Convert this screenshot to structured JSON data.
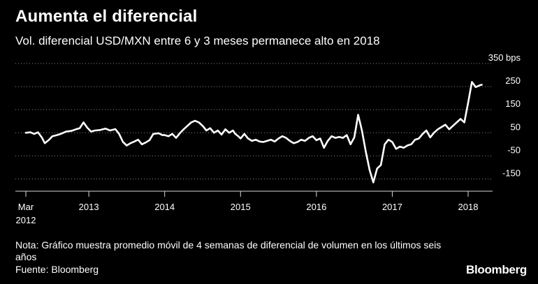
{
  "header": {
    "title": "Aumenta el diferencial",
    "subtitle": "Vol. diferencial USD/MXN entre 6 y 3 meses permanece alto en 2018"
  },
  "footer": {
    "note": "Nota: Gráfico muestra promedio móvil de 4 semanas de diferencial de volumen en los últimos seis años",
    "source": "Fuente: Bloomberg",
    "logo": "Bloomberg"
  },
  "colors": {
    "background": "#000000",
    "line": "#ffffff",
    "grid": "#8a8a8a",
    "axis": "#d9d9d9",
    "text": "#ffffff"
  },
  "chart_data": {
    "type": "line",
    "title": "Aumenta el diferencial",
    "subtitle": "Vol. diferencial USD/MXN entre 6 y 3 meses permanece alto en 2018",
    "unit": "bps",
    "ylim": [
      -200,
      350
    ],
    "xlim": [
      2012.17,
      2018.33
    ],
    "grid": true,
    "legend": "none",
    "y_ticks": [
      {
        "value": 350,
        "label": "350 bps"
      },
      {
        "value": 250,
        "label": "250"
      },
      {
        "value": 150,
        "label": "150"
      },
      {
        "value": 50,
        "label": "50"
      },
      {
        "value": -50,
        "label": "-50"
      },
      {
        "value": -150,
        "label": "-150"
      }
    ],
    "x_ticks": [
      {
        "value": 2012.17,
        "label": "Mar",
        "label2": "2012"
      },
      {
        "value": 2013.0,
        "label": "2013"
      },
      {
        "value": 2014.0,
        "label": "2014"
      },
      {
        "value": 2015.0,
        "label": "2015"
      },
      {
        "value": 2016.0,
        "label": "2016"
      },
      {
        "value": 2017.0,
        "label": "2017"
      },
      {
        "value": 2018.0,
        "label": "2018"
      }
    ],
    "series": [
      {
        "points": [
          [
            2012.17,
            50
          ],
          [
            2012.23,
            52
          ],
          [
            2012.28,
            45
          ],
          [
            2012.33,
            52
          ],
          [
            2012.38,
            30
          ],
          [
            2012.42,
            5
          ],
          [
            2012.47,
            18
          ],
          [
            2012.52,
            35
          ],
          [
            2012.58,
            40
          ],
          [
            2012.63,
            45
          ],
          [
            2012.7,
            55
          ],
          [
            2012.77,
            58
          ],
          [
            2012.83,
            65
          ],
          [
            2012.88,
            70
          ],
          [
            2012.93,
            95
          ],
          [
            2012.98,
            72
          ],
          [
            2013.03,
            55
          ],
          [
            2013.08,
            60
          ],
          [
            2013.15,
            62
          ],
          [
            2013.22,
            68
          ],
          [
            2013.28,
            60
          ],
          [
            2013.35,
            66
          ],
          [
            2013.4,
            45
          ],
          [
            2013.45,
            10
          ],
          [
            2013.5,
            -5
          ],
          [
            2013.55,
            5
          ],
          [
            2013.6,
            12
          ],
          [
            2013.65,
            20
          ],
          [
            2013.7,
            0
          ],
          [
            2013.75,
            8
          ],
          [
            2013.8,
            18
          ],
          [
            2013.85,
            45
          ],
          [
            2013.92,
            48
          ],
          [
            2013.97,
            40
          ],
          [
            2014.0,
            40
          ],
          [
            2014.05,
            35
          ],
          [
            2014.1,
            45
          ],
          [
            2014.15,
            28
          ],
          [
            2014.2,
            48
          ],
          [
            2014.25,
            65
          ],
          [
            2014.3,
            80
          ],
          [
            2014.35,
            95
          ],
          [
            2014.4,
            102
          ],
          [
            2014.45,
            95
          ],
          [
            2014.5,
            80
          ],
          [
            2014.55,
            60
          ],
          [
            2014.6,
            70
          ],
          [
            2014.65,
            50
          ],
          [
            2014.7,
            60
          ],
          [
            2014.75,
            42
          ],
          [
            2014.8,
            65
          ],
          [
            2014.85,
            50
          ],
          [
            2014.9,
            60
          ],
          [
            2014.93,
            45
          ],
          [
            2014.97,
            35
          ],
          [
            2015.0,
            25
          ],
          [
            2015.05,
            45
          ],
          [
            2015.1,
            25
          ],
          [
            2015.15,
            15
          ],
          [
            2015.2,
            20
          ],
          [
            2015.25,
            12
          ],
          [
            2015.3,
            10
          ],
          [
            2015.35,
            15
          ],
          [
            2015.4,
            20
          ],
          [
            2015.45,
            12
          ],
          [
            2015.5,
            25
          ],
          [
            2015.55,
            35
          ],
          [
            2015.6,
            28
          ],
          [
            2015.65,
            15
          ],
          [
            2015.7,
            5
          ],
          [
            2015.75,
            10
          ],
          [
            2015.8,
            20
          ],
          [
            2015.85,
            15
          ],
          [
            2015.9,
            28
          ],
          [
            2015.95,
            35
          ],
          [
            2016.0,
            18
          ],
          [
            2016.05,
            25
          ],
          [
            2016.1,
            -15
          ],
          [
            2016.15,
            15
          ],
          [
            2016.2,
            35
          ],
          [
            2016.25,
            28
          ],
          [
            2016.3,
            32
          ],
          [
            2016.35,
            28
          ],
          [
            2016.4,
            40
          ],
          [
            2016.45,
            0
          ],
          [
            2016.5,
            30
          ],
          [
            2016.55,
            128
          ],
          [
            2016.6,
            60
          ],
          [
            2016.65,
            -30
          ],
          [
            2016.7,
            -110
          ],
          [
            2016.75,
            -165
          ],
          [
            2016.8,
            -105
          ],
          [
            2016.85,
            -90
          ],
          [
            2016.9,
            0
          ],
          [
            2016.95,
            20
          ],
          [
            2017.0,
            10
          ],
          [
            2017.05,
            -20
          ],
          [
            2017.1,
            -10
          ],
          [
            2017.15,
            -15
          ],
          [
            2017.2,
            -5
          ],
          [
            2017.25,
            0
          ],
          [
            2017.3,
            20
          ],
          [
            2017.35,
            25
          ],
          [
            2017.4,
            45
          ],
          [
            2017.45,
            60
          ],
          [
            2017.5,
            30
          ],
          [
            2017.55,
            50
          ],
          [
            2017.6,
            65
          ],
          [
            2017.65,
            75
          ],
          [
            2017.7,
            85
          ],
          [
            2017.75,
            65
          ],
          [
            2017.8,
            80
          ],
          [
            2017.85,
            95
          ],
          [
            2017.9,
            110
          ],
          [
            2017.95,
            95
          ],
          [
            2018.0,
            180
          ],
          [
            2018.05,
            270
          ],
          [
            2018.1,
            248
          ],
          [
            2018.15,
            255
          ],
          [
            2018.18,
            258
          ]
        ]
      }
    ]
  }
}
